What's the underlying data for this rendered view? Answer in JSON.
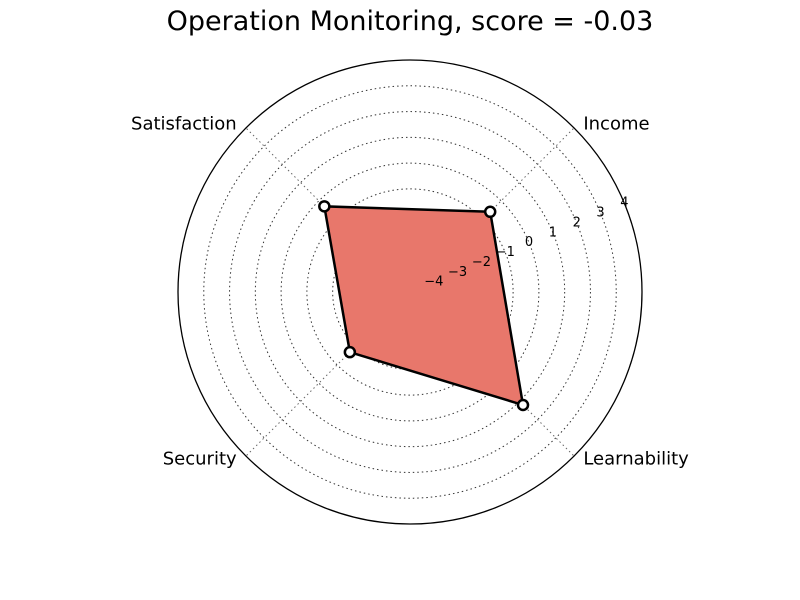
{
  "chart_data": {
    "type": "radar",
    "title": "Operation Monitoring, score = -0.03",
    "categories": [
      "Income",
      "Satisfaction",
      "Security",
      "Learnability"
    ],
    "values": [
      -0.6,
      -0.3,
      -1.7,
      1.2
    ],
    "rlim": [
      -5,
      4
    ],
    "rticks": [
      -4,
      -3,
      -2,
      -1,
      0,
      1,
      2,
      3,
      4
    ],
    "rtick_labels": [
      "−4",
      "−3",
      "−2",
      "−1",
      "0",
      "1",
      "2",
      "3",
      "4"
    ],
    "grid": true,
    "fill_color": "#e8776b",
    "line_color": "#000000"
  }
}
